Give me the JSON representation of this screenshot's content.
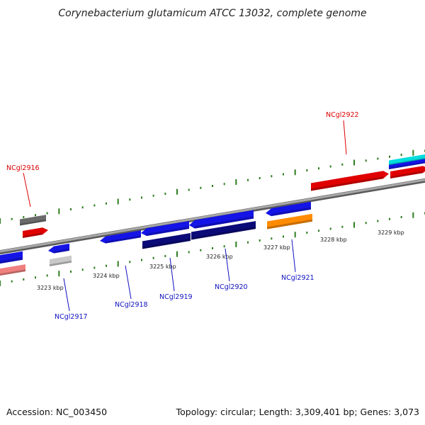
{
  "title": "Corynebacterium glutamicum ATCC 13032, complete genome",
  "footer": {
    "accession": "Accession: NC_003450",
    "topology": "Topology: circular; Length: 3,309,401 bp; Genes: 3,073"
  },
  "colors": {
    "backbone": "#8c8c8c",
    "tick": "#2e7d1f",
    "red_gene": "#e00000",
    "blue_gene": "#1414e6",
    "navy_gene": "#0a0a78",
    "orange_gene": "#ff8c00",
    "gray_gene": "#6a6a6a",
    "lightgray_gene": "#c8c8c8",
    "pink_gene": "#f08080",
    "cyan_gene": "#00dddd"
  },
  "scale_labels": [
    "3223 kbp",
    "3224 kbp",
    "3225 kbp",
    "3226 kbp",
    "3227 kbp",
    "3228 kbp",
    "3229 kbp"
  ],
  "gene_labels": [
    {
      "text": "NCgl2916",
      "strand": "red"
    },
    {
      "text": "NCgl2922",
      "strand": "red"
    },
    {
      "text": "NCgl2917",
      "strand": "blue"
    },
    {
      "text": "NCgl2918",
      "strand": "blue"
    },
    {
      "text": "NCgl2919",
      "strand": "blue"
    },
    {
      "text": "NCgl2920",
      "strand": "blue"
    },
    {
      "text": "NCgl2921",
      "strand": "blue"
    }
  ]
}
